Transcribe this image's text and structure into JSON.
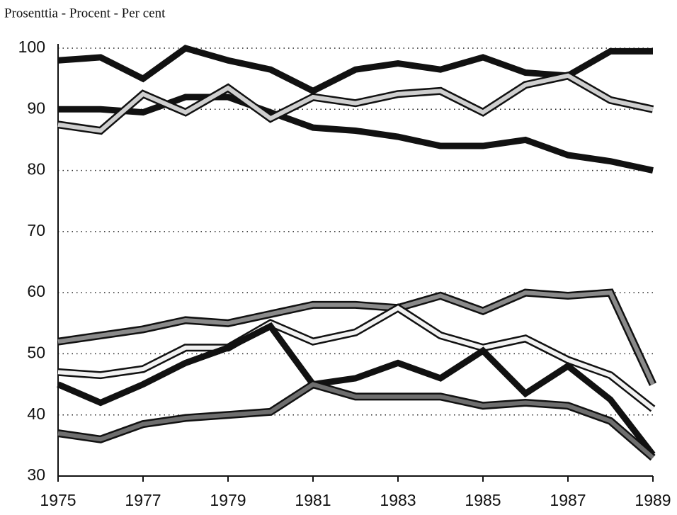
{
  "chart_data": {
    "type": "line",
    "title": "Prosenttia -  Procent - Per cent",
    "x": [
      1975,
      1976,
      1977,
      1978,
      1979,
      1980,
      1981,
      1982,
      1983,
      1984,
      1985,
      1986,
      1987,
      1988,
      1989
    ],
    "series": [
      {
        "color": "#111111",
        "values": [
          98,
          98.5,
          95,
          100,
          98,
          96.5,
          93,
          96.5,
          97.5,
          96.5,
          98.5,
          96,
          95.5,
          99.5,
          99.5
        ]
      },
      {
        "color": "#111111",
        "values": [
          90,
          90,
          89.5,
          92,
          92,
          89.5,
          87,
          86.5,
          85.5,
          84,
          84,
          85,
          82.5,
          81.5,
          80
        ]
      },
      {
        "color": "#cfcfcf",
        "values": [
          87.5,
          86.5,
          92.5,
          89.5,
          93.5,
          88.5,
          92,
          91,
          92.5,
          93,
          89.5,
          94,
          95.5,
          91.5,
          90
        ]
      },
      {
        "color": "#8a8a8a",
        "values": [
          52,
          53,
          54,
          55.5,
          55,
          56.5,
          58,
          58,
          57.5,
          59.5,
          57,
          60,
          59.5,
          60,
          45
        ]
      },
      {
        "color": "#f2f2f2",
        "values": [
          47,
          46.5,
          47.5,
          51,
          51,
          55,
          52,
          53.5,
          57.5,
          53,
          51,
          52.5,
          49,
          46.5,
          41
        ]
      },
      {
        "color": "#111111",
        "values": [
          45,
          42,
          45,
          48.5,
          51,
          54.5,
          45,
          46,
          48.5,
          46,
          50.5,
          43.5,
          48,
          42.5,
          33.5
        ]
      },
      {
        "color": "#6e6e6e",
        "values": [
          37,
          36,
          38.5,
          39.5,
          40,
          40.5,
          45,
          43,
          43,
          43,
          41.5,
          42,
          41.5,
          39,
          33
        ]
      }
    ],
    "xlim": [
      1975,
      1989
    ],
    "xticks": [
      1975,
      1977,
      1979,
      1981,
      1983,
      1985,
      1987,
      1989
    ],
    "ylim": [
      30,
      100
    ],
    "yticks": [
      30,
      40,
      50,
      60,
      70,
      80,
      90,
      100
    ],
    "grid": true
  }
}
